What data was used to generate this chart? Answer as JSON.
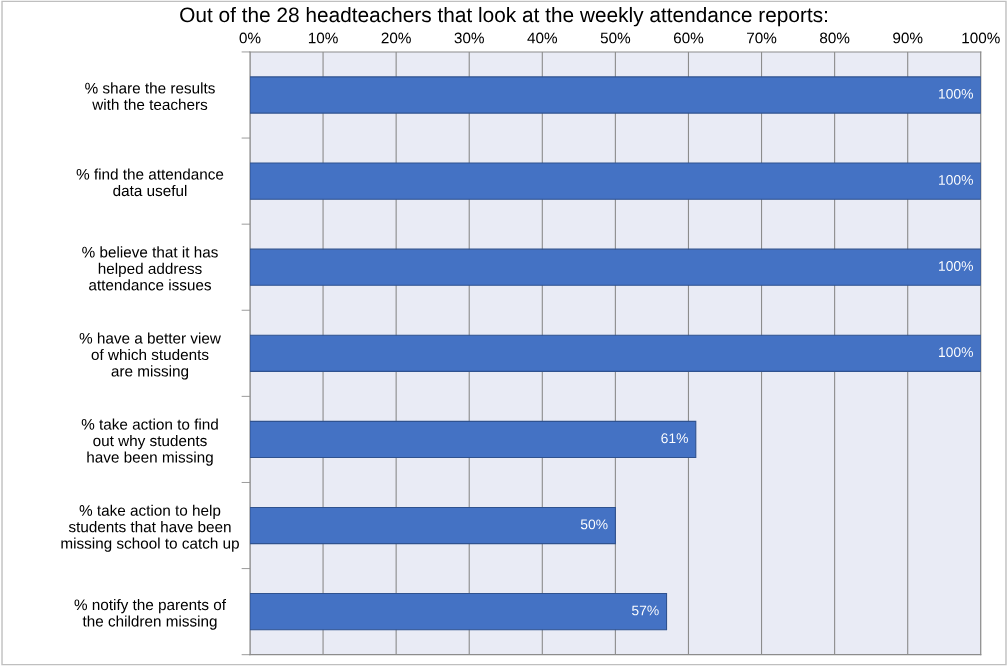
{
  "chart_data": {
    "type": "bar",
    "orientation": "horizontal",
    "title": "Out of the 28 headteachers that look at the weekly attendance reports:",
    "categories": [
      "% share the results\nwith the teachers",
      "% find the attendance\ndata useful",
      "% believe that it has\nhelped address\nattendance issues",
      "% have a better view\nof which students\nare missing",
      "% take action to find\nout why students\nhave been missing",
      "% take action to help\nstudents that have been\nmissing school to catch up",
      "% notify the parents of\nthe children missing"
    ],
    "values": [
      100,
      100,
      100,
      100,
      61,
      50,
      57
    ],
    "value_labels": [
      "100%",
      "100%",
      "100%",
      "100%",
      "61%",
      "50%",
      "57%"
    ],
    "color": "#4472c4",
    "xlim": [
      0,
      100
    ],
    "xticks": [
      {
        "value": 0,
        "label": "0%"
      },
      {
        "value": 10,
        "label": "10%"
      },
      {
        "value": 20,
        "label": "20%"
      },
      {
        "value": 30,
        "label": "30%"
      },
      {
        "value": 40,
        "label": "40%"
      },
      {
        "value": 50,
        "label": "50%"
      },
      {
        "value": 60,
        "label": "60%"
      },
      {
        "value": 70,
        "label": "70%"
      },
      {
        "value": 80,
        "label": "80%"
      },
      {
        "value": 90,
        "label": "90%"
      },
      {
        "value": 100,
        "label": "100%"
      }
    ],
    "grid": "x",
    "legend": false
  }
}
